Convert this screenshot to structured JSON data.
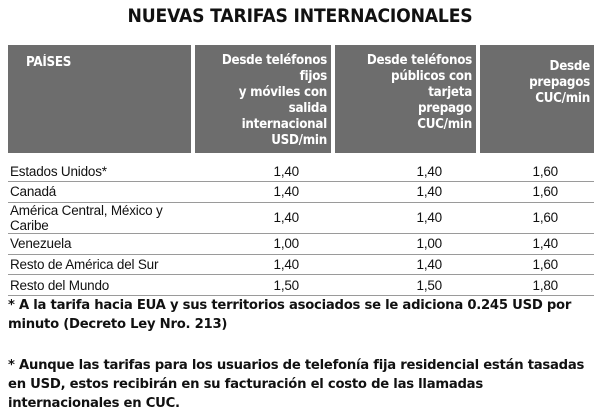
{
  "title": "NUEVAS TARIFAS INTERNACIONALES",
  "table": {
    "headers": [
      [
        "PAÍSES"
      ],
      [
        "Desde teléfonos fijos",
        "y móviles con salida",
        "internacional",
        "USD/min"
      ],
      [
        "Desde teléfonos",
        "públicos con tarjeta",
        "prepago",
        "CUC/min"
      ],
      [
        "Desde prepagos",
        "CUC/min"
      ]
    ],
    "rows": [
      {
        "country": "Estados Unidos*",
        "fijos_moviles": "1,40",
        "publicos": "1,40",
        "prepagos": "1,60"
      },
      {
        "country": "Canadá",
        "fijos_moviles": "1,40",
        "publicos": "1,40",
        "prepagos": "1,60"
      },
      {
        "country": "América Central, México y Caribe",
        "fijos_moviles": "1,40",
        "publicos": "1,40",
        "prepagos": "1,60"
      },
      {
        "country": "Venezuela",
        "fijos_moviles": "1,00",
        "publicos": "1,00",
        "prepagos": "1,40"
      },
      {
        "country": "Resto de América del Sur",
        "fijos_moviles": "1,40",
        "publicos": "1,40",
        "prepagos": "1,60"
      },
      {
        "country": "Resto del Mundo",
        "fijos_moviles": "1,50",
        "publicos": "1,50",
        "prepagos": "1,80"
      }
    ]
  },
  "notes": [
    "* A la tarifa hacia EUA y sus territorios asociados se le adiciona 0.245 USD por minuto (Decreto Ley Nro. 213)",
    "* Aunque las tarifas para los usuarios de telefonía fija residencial están tasadas en USD, estos recibirán en su facturación el costo de las llamadas internacionales en CUC."
  ]
}
